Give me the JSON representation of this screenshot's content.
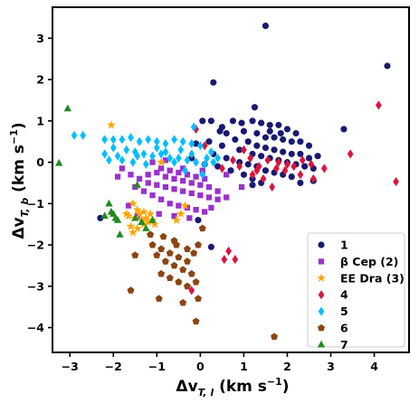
{
  "chart_data": {
    "type": "scatter",
    "title": "",
    "xlabel_main": "Δv",
    "xlabel_sub": "T, l",
    "xlabel_unit": " (km s",
    "xlabel_unit_exp": "−1",
    "xlabel_close": ")",
    "ylabel_main": "Δv",
    "ylabel_sub": "T, b",
    "ylabel_unit": " (km s",
    "ylabel_unit_exp": "−1",
    "ylabel_close": ")",
    "xlim": [
      -3.4,
      4.8
    ],
    "ylim": [
      -4.6,
      3.75
    ],
    "xticks": [
      -3,
      -2,
      -1,
      0,
      1,
      2,
      3,
      4
    ],
    "yticks": [
      -4,
      -3,
      -2,
      -1,
      0,
      1,
      2,
      3
    ],
    "grid": false,
    "legend_position": "lower-right",
    "series": [
      {
        "name": "1",
        "color": "#191970",
        "marker": "circle",
        "points": [
          [
            1.5,
            3.3
          ],
          [
            4.3,
            2.33
          ],
          [
            0.3,
            1.93
          ],
          [
            3.3,
            0.8
          ],
          [
            1.25,
            1.33
          ],
          [
            0.75,
            1.0
          ],
          [
            0.05,
            1.0
          ],
          [
            0.25,
            1.0
          ],
          [
            0.5,
            0.85
          ],
          [
            0.95,
            0.95
          ],
          [
            1.2,
            1.0
          ],
          [
            1.4,
            0.95
          ],
          [
            1.6,
            0.9
          ],
          [
            1.8,
            0.9
          ],
          [
            2.0,
            0.8
          ],
          [
            2.2,
            0.7
          ],
          [
            1.0,
            0.75
          ],
          [
            1.3,
            0.7
          ],
          [
            1.5,
            0.6
          ],
          [
            1.7,
            0.6
          ],
          [
            1.9,
            0.55
          ],
          [
            2.1,
            0.5
          ],
          [
            2.3,
            0.5
          ],
          [
            2.5,
            0.4
          ],
          [
            0.8,
            0.55
          ],
          [
            1.1,
            0.5
          ],
          [
            1.3,
            0.4
          ],
          [
            1.5,
            0.35
          ],
          [
            1.7,
            0.3
          ],
          [
            1.9,
            0.25
          ],
          [
            2.1,
            0.2
          ],
          [
            2.3,
            0.2
          ],
          [
            2.5,
            0.1
          ],
          [
            2.7,
            0.15
          ],
          [
            0.5,
            0.4
          ],
          [
            0.9,
            0.3
          ],
          [
            1.2,
            0.2
          ],
          [
            1.4,
            0.15
          ],
          [
            1.6,
            0.1
          ],
          [
            1.8,
            0.05
          ],
          [
            2.0,
            0.0
          ],
          [
            2.2,
            -0.05
          ],
          [
            2.4,
            -0.1
          ],
          [
            2.6,
            -0.15
          ],
          [
            0.3,
            0.2
          ],
          [
            0.6,
            0.1
          ],
          [
            0.9,
            0.0
          ],
          [
            1.1,
            -0.05
          ],
          [
            1.3,
            -0.1
          ],
          [
            1.5,
            -0.2
          ],
          [
            1.7,
            -0.25
          ],
          [
            1.9,
            -0.3
          ],
          [
            2.1,
            -0.35
          ],
          [
            0.4,
            -0.1
          ],
          [
            0.7,
            -0.2
          ],
          [
            1.0,
            -0.3
          ],
          [
            1.2,
            -0.4
          ],
          [
            1.4,
            -0.5
          ],
          [
            2.3,
            -0.5
          ],
          [
            1.2,
            -0.55
          ],
          [
            2.6,
            -0.45
          ],
          [
            0.2,
            0.5
          ],
          [
            0.6,
            0.7
          ],
          [
            1.6,
            0.75
          ],
          [
            1.85,
            0.7
          ],
          [
            0.45,
            0.75
          ],
          [
            -0.1,
            0.45
          ],
          [
            -0.2,
            0.1
          ],
          [
            0.1,
            -0.05
          ],
          [
            -0.05,
            -1.4
          ],
          [
            0.25,
            -2.05
          ],
          [
            -2.3,
            -1.35
          ]
        ]
      },
      {
        "name": "β Cep (2)",
        "color": "#9932cc",
        "marker": "square",
        "points": [
          [
            -1.8,
            -0.15
          ],
          [
            -1.6,
            -0.3
          ],
          [
            -1.4,
            -0.4
          ],
          [
            -1.2,
            -0.5
          ],
          [
            -1.0,
            -0.55
          ],
          [
            -0.8,
            -0.6
          ],
          [
            -0.6,
            -0.65
          ],
          [
            -0.4,
            -0.7
          ],
          [
            -0.2,
            -0.75
          ],
          [
            0.0,
            -0.8
          ],
          [
            0.2,
            -0.85
          ],
          [
            0.4,
            -0.9
          ],
          [
            0.6,
            -0.85
          ],
          [
            -1.5,
            -0.6
          ],
          [
            -1.3,
            -0.7
          ],
          [
            -1.1,
            -0.8
          ],
          [
            -0.9,
            -0.9
          ],
          [
            -0.7,
            -1.0
          ],
          [
            -0.5,
            -1.05
          ],
          [
            -0.3,
            -1.1
          ],
          [
            -0.1,
            -1.15
          ],
          [
            0.1,
            -1.2
          ],
          [
            -1.2,
            -0.3
          ],
          [
            -1.0,
            -0.25
          ],
          [
            -0.8,
            -0.35
          ],
          [
            -0.6,
            -0.4
          ],
          [
            -0.4,
            -0.45
          ],
          [
            -0.2,
            -0.5
          ],
          [
            0.0,
            -0.55
          ],
          [
            0.2,
            -0.6
          ],
          [
            -0.9,
            -0.15
          ],
          [
            -0.7,
            -0.2
          ],
          [
            -0.5,
            -0.25
          ],
          [
            -0.3,
            -0.3
          ],
          [
            -0.1,
            -0.35
          ],
          [
            0.1,
            -0.4
          ],
          [
            -1.1,
            0.0
          ],
          [
            -0.8,
            0.05
          ],
          [
            -0.4,
            -0.15
          ],
          [
            0.05,
            -0.2
          ],
          [
            -1.9,
            -0.35
          ],
          [
            -1.65,
            -1.05
          ],
          [
            -1.45,
            -1.3
          ],
          [
            -0.95,
            -1.25
          ],
          [
            0.25,
            -1.1
          ],
          [
            0.4,
            -0.7
          ],
          [
            0.95,
            -0.6
          ],
          [
            0.6,
            -0.3
          ],
          [
            -0.25,
            -1.35
          ],
          [
            -0.6,
            -1.3
          ]
        ]
      },
      {
        "name": "EE Dra (3)",
        "color": "#ffa500",
        "marker": "star",
        "points": [
          [
            -2.05,
            0.9
          ],
          [
            -0.9,
            0.0
          ],
          [
            -0.35,
            -1.05
          ],
          [
            -1.55,
            -1.0
          ],
          [
            -1.45,
            -1.15
          ],
          [
            -1.3,
            -1.2
          ],
          [
            -1.15,
            -1.25
          ],
          [
            -1.65,
            -1.3
          ],
          [
            -1.5,
            -1.35
          ],
          [
            -1.35,
            -1.4
          ],
          [
            -1.2,
            -1.45
          ],
          [
            -1.05,
            -1.5
          ],
          [
            -1.6,
            -1.55
          ],
          [
            -1.45,
            -1.6
          ],
          [
            -1.3,
            -1.5
          ],
          [
            -1.55,
            -1.7
          ],
          [
            -1.7,
            -1.25
          ],
          [
            -1.4,
            -1.25
          ],
          [
            -1.25,
            -1.35
          ],
          [
            -1.1,
            -1.4
          ],
          [
            -0.55,
            -1.4
          ],
          [
            -0.45,
            -1.25
          ]
        ]
      },
      {
        "name": "4",
        "color": "#dc143c",
        "marker": "diamond",
        "points": [
          [
            4.1,
            1.38
          ],
          [
            4.5,
            -0.47
          ],
          [
            -0.1,
            0.8
          ],
          [
            0.1,
            0.4
          ],
          [
            1.0,
            0.3
          ],
          [
            1.15,
            0.1
          ],
          [
            1.35,
            -0.1
          ],
          [
            1.55,
            0.05
          ],
          [
            1.75,
            -0.15
          ],
          [
            1.95,
            -0.2
          ],
          [
            2.15,
            -0.1
          ],
          [
            2.35,
            0.05
          ],
          [
            2.55,
            -0.05
          ],
          [
            2.85,
            -0.15
          ],
          [
            1.2,
            -0.3
          ],
          [
            1.45,
            -0.4
          ],
          [
            1.65,
            -0.6
          ],
          [
            1.8,
            0.0
          ],
          [
            2.0,
            -0.05
          ],
          [
            2.6,
            -0.4
          ],
          [
            0.5,
            -0.15
          ],
          [
            0.75,
            0.05
          ],
          [
            3.45,
            0.2
          ],
          [
            2.3,
            -0.3
          ],
          [
            0.65,
            -2.15
          ],
          [
            0.55,
            -2.35
          ],
          [
            0.8,
            -2.35
          ],
          [
            -0.2,
            -3.1
          ],
          [
            1.3,
            -0.2
          ],
          [
            0.9,
            -0.1
          ]
        ]
      },
      {
        "name": "5",
        "color": "#00bfff",
        "marker": "diamond",
        "points": [
          [
            -2.9,
            0.65
          ],
          [
            -2.7,
            0.65
          ],
          [
            -2.2,
            0.55
          ],
          [
            -2.0,
            0.55
          ],
          [
            -1.8,
            0.55
          ],
          [
            -1.6,
            0.6
          ],
          [
            -1.4,
            0.5
          ],
          [
            -1.2,
            0.55
          ],
          [
            -1.0,
            0.5
          ],
          [
            -0.8,
            0.45
          ],
          [
            -0.6,
            0.55
          ],
          [
            -0.4,
            0.5
          ],
          [
            -0.2,
            0.45
          ],
          [
            0.0,
            0.4
          ],
          [
            -1.9,
            0.15
          ],
          [
            -1.7,
            0.3
          ],
          [
            -1.5,
            0.25
          ],
          [
            -1.3,
            0.2
          ],
          [
            -1.1,
            0.15
          ],
          [
            -0.9,
            0.2
          ],
          [
            -0.7,
            0.1
          ],
          [
            -0.5,
            0.1
          ],
          [
            -0.3,
            0.05
          ],
          [
            -0.1,
            0.0
          ],
          [
            0.1,
            -0.05
          ],
          [
            0.3,
            0.0
          ],
          [
            -2.2,
            0.2
          ],
          [
            -2.0,
            0.35
          ],
          [
            -1.0,
            0.35
          ],
          [
            -0.45,
            0.3
          ],
          [
            0.15,
            0.1
          ],
          [
            0.4,
            0.1
          ],
          [
            -0.15,
            0.85
          ],
          [
            -1.55,
            0.0
          ],
          [
            -0.35,
            -0.2
          ],
          [
            0.05,
            -0.3
          ],
          [
            -2.1,
            0.05
          ],
          [
            -1.8,
            0.05
          ],
          [
            -1.45,
            0.15
          ],
          [
            -0.8,
            0.25
          ],
          [
            -0.6,
            0.0
          ],
          [
            -0.2,
            0.2
          ],
          [
            0.25,
            0.25
          ],
          [
            -1.25,
            -0.05
          ]
        ]
      },
      {
        "name": "6",
        "color": "#8b4513",
        "marker": "pentagon",
        "points": [
          [
            -1.1,
            -2.0
          ],
          [
            -0.9,
            -2.1
          ],
          [
            -0.7,
            -2.2
          ],
          [
            -0.5,
            -2.3
          ],
          [
            -0.3,
            -2.4
          ],
          [
            -1.0,
            -2.25
          ],
          [
            -0.8,
            -2.4
          ],
          [
            -0.6,
            -2.5
          ],
          [
            -0.4,
            -2.6
          ],
          [
            -0.2,
            -2.7
          ],
          [
            -0.9,
            -2.7
          ],
          [
            -0.7,
            -2.8
          ],
          [
            -0.5,
            -2.9
          ],
          [
            -0.3,
            -3.0
          ],
          [
            -0.1,
            -2.9
          ],
          [
            -1.5,
            -2.25
          ],
          [
            -1.6,
            -3.1
          ],
          [
            -0.95,
            -3.3
          ],
          [
            -0.4,
            -3.4
          ],
          [
            -0.1,
            -3.85
          ],
          [
            -0.05,
            -3.3
          ],
          [
            -0.15,
            -2.2
          ],
          [
            0.05,
            -1.6
          ],
          [
            -0.6,
            -1.9
          ],
          [
            -0.3,
            -2.1
          ],
          [
            -1.15,
            -1.75
          ],
          [
            -0.85,
            -1.8
          ],
          [
            1.7,
            -4.22
          ],
          [
            -0.05,
            -2.0
          ],
          [
            -0.55,
            -2.0
          ]
        ]
      },
      {
        "name": "7",
        "color": "#228b22",
        "marker": "triangle",
        "points": [
          [
            -3.05,
            1.3
          ],
          [
            -3.25,
            -0.02
          ],
          [
            -2.2,
            -1.3
          ],
          [
            -2.1,
            -1.0
          ],
          [
            -2.0,
            -1.25
          ],
          [
            -1.95,
            -1.35
          ],
          [
            -1.9,
            -1.4
          ],
          [
            -1.85,
            -1.75
          ],
          [
            -1.45,
            -0.55
          ],
          [
            -1.5,
            -1.35
          ],
          [
            -1.35,
            -1.45
          ],
          [
            -1.25,
            -1.6
          ],
          [
            -1.1,
            -1.4
          ],
          [
            -2.05,
            -1.2
          ]
        ]
      }
    ]
  }
}
